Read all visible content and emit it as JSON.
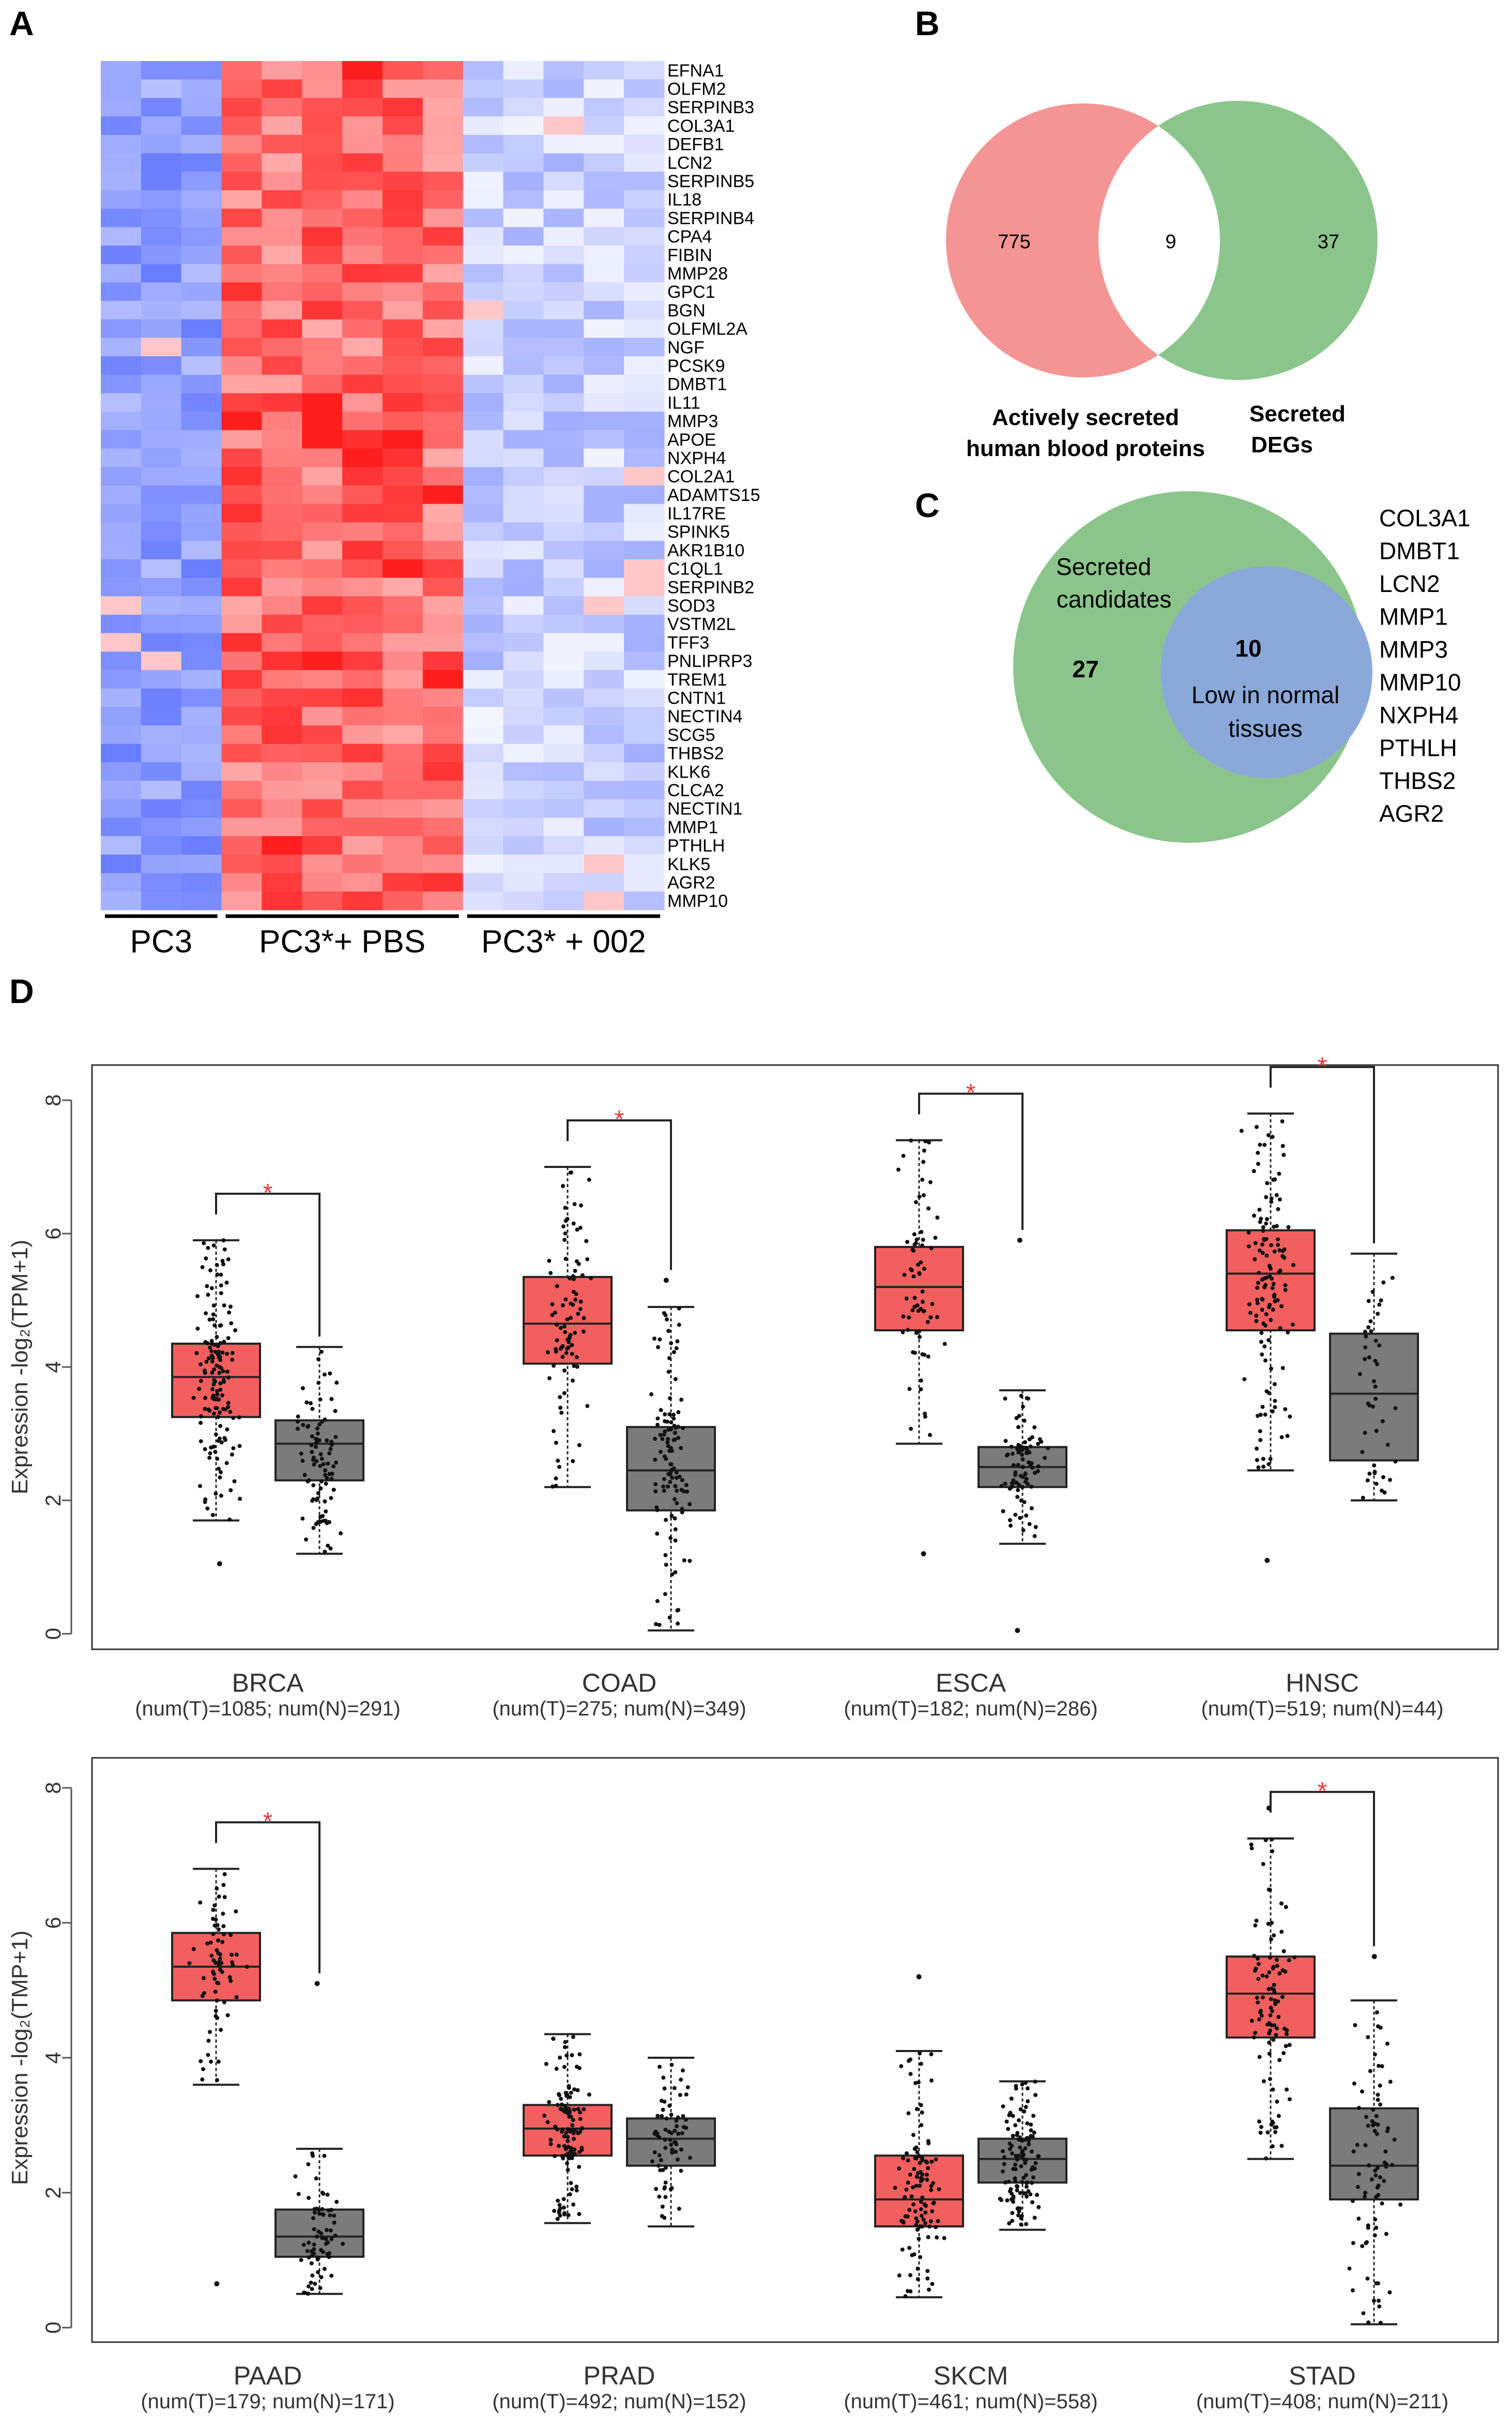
{
  "panels": {
    "A": "A",
    "B": "B",
    "C": "C",
    "D": "D"
  },
  "colors": {
    "tumor": "#f25f5f",
    "normal": "#7b7b7b",
    "vennRed": "#f49494",
    "vennGreen": "#8cc58c",
    "vennBlue": "#8aa9d9",
    "sig": "#e8383d"
  },
  "chart_data": [
    {
      "type": "heatmap",
      "panel": "A",
      "groups": [
        "PC3",
        "PC3*+ PBS",
        "PC3* + 002"
      ],
      "columns_per_group": [
        3,
        6,
        5
      ],
      "genes": [
        "EFNA1",
        "OLFM2",
        "SERPINB3",
        "COL3A1",
        "DEFB1",
        "LCN2",
        "SERPINB5",
        "IL18",
        "SERPINB4",
        "CPA4",
        "FIBIN",
        "MMP28",
        "GPC1",
        "BGN",
        "OLFML2A",
        "NGF",
        "PCSK9",
        "DMBT1",
        "IL11",
        "MMP3",
        "APOE",
        "NXPH4",
        "COL2A1",
        "ADAMTS15",
        "IL17RE",
        "SPINK5",
        "AKR1B10",
        "C1QL1",
        "SERPINB2",
        "SOD3",
        "VSTM2L",
        "TFF3",
        "PNLIPRP3",
        "TREM1",
        "CNTN1",
        "NECTIN4",
        "SCG5",
        "THBS2",
        "KLK6",
        "CLCA2",
        "NECTIN1",
        "MMP1",
        "PTHLH",
        "KLK5",
        "AGR2",
        "MMP10"
      ],
      "level_by_group": [
        -0.75,
        0.65,
        -0.35
      ]
    },
    {
      "type": "venn",
      "panel": "B",
      "sets": [
        {
          "label_line1": "Actively secreted",
          "label_line2": "human blood proteins",
          "only": 775
        },
        {
          "label_line1": "Secreted",
          "label_line2": "DEGs",
          "only": 37
        }
      ],
      "intersection": 9
    },
    {
      "type": "venn",
      "panel": "C",
      "outer": {
        "label_line1": "Secreted",
        "label_line2": "candidates",
        "only": 27
      },
      "inner": {
        "label_line1": "Low in normal",
        "label_line2": "tissues",
        "count": 10
      },
      "gene_list": [
        "COL3A1",
        "DMBT1",
        "LCN2",
        "MMP1",
        "MMP3",
        "MMP10",
        "NXPH4",
        "PTHLH",
        "THBS2",
        "AGR2"
      ]
    },
    {
      "type": "box",
      "panel": "D-top",
      "ylabel": "Expression -log₂(TPM+1)",
      "ylim": [
        0,
        8.5
      ],
      "yticks": [
        0,
        2,
        4,
        6,
        8
      ],
      "significance_marker": "*",
      "groups": [
        {
          "name": "BRCA",
          "counts": "(num(T)=1085; num(N)=291)",
          "sig": true,
          "tumor": {
            "min": 1.7,
            "q1": 3.25,
            "median": 3.85,
            "q3": 4.35,
            "max": 5.9,
            "low_out": 1.05,
            "n_pts": 150
          },
          "normal": {
            "min": 1.2,
            "q1": 2.3,
            "median": 2.85,
            "q3": 3.2,
            "max": 4.3,
            "n_pts": 90
          }
        },
        {
          "name": "COAD",
          "counts": "(num(T)=275; num(N)=349)",
          "sig": true,
          "tumor": {
            "min": 2.2,
            "q1": 4.05,
            "median": 4.65,
            "q3": 5.35,
            "max": 7.0,
            "n_pts": 90
          },
          "normal": {
            "min": 0.05,
            "q1": 1.85,
            "median": 2.45,
            "q3": 3.1,
            "max": 4.9,
            "high_out": 5.3,
            "n_pts": 110
          }
        },
        {
          "name": "ESCA",
          "counts": "(num(T)=182; num(N)=286)",
          "sig": true,
          "tumor": {
            "min": 2.85,
            "q1": 4.55,
            "median": 5.2,
            "q3": 5.8,
            "max": 7.4,
            "low_out": 1.2,
            "n_pts": 70
          },
          "normal": {
            "min": 1.35,
            "q1": 2.2,
            "median": 2.5,
            "q3": 2.8,
            "max": 3.65,
            "high_out": 5.9,
            "low_out": 0.05,
            "n_pts": 90
          }
        },
        {
          "name": "HNSC",
          "counts": "(num(T)=519; num(N)=44)",
          "sig": true,
          "tumor": {
            "min": 2.45,
            "q1": 4.55,
            "median": 5.4,
            "q3": 6.05,
            "max": 7.8,
            "low_out": 1.1,
            "n_pts": 130
          },
          "normal": {
            "min": 2.0,
            "q1": 2.6,
            "median": 3.6,
            "q3": 4.5,
            "max": 5.7,
            "n_pts": 44
          }
        }
      ]
    },
    {
      "type": "box",
      "panel": "D-bottom",
      "ylabel": "Expression -log₂(TMP+1)",
      "ylim": [
        0,
        8.5
      ],
      "yticks": [
        0,
        2,
        4,
        6,
        8
      ],
      "significance_marker": "*",
      "groups": [
        {
          "name": "PAAD",
          "counts": "(num(T)=179; num(N)=171)",
          "sig": true,
          "tumor": {
            "min": 3.6,
            "q1": 4.85,
            "median": 5.35,
            "q3": 5.85,
            "max": 6.8,
            "low_out": 0.65,
            "n_pts": 70
          },
          "normal": {
            "min": 0.5,
            "q1": 1.05,
            "median": 1.35,
            "q3": 1.75,
            "max": 2.65,
            "high_out": 5.1,
            "n_pts": 70
          }
        },
        {
          "name": "PRAD",
          "counts": "(num(T)=492; num(N)=152)",
          "sig": false,
          "tumor": {
            "min": 1.55,
            "q1": 2.55,
            "median": 2.95,
            "q3": 3.3,
            "max": 4.35,
            "n_pts": 120
          },
          "normal": {
            "min": 1.5,
            "q1": 2.4,
            "median": 2.8,
            "q3": 3.1,
            "max": 4.0,
            "n_pts": 70
          }
        },
        {
          "name": "SKCM",
          "counts": "(num(T)=461; num(N)=558)",
          "sig": false,
          "tumor": {
            "min": 0.45,
            "q1": 1.5,
            "median": 1.9,
            "q3": 2.55,
            "max": 4.1,
            "high_out": 5.2,
            "n_pts": 110
          },
          "normal": {
            "min": 1.45,
            "q1": 2.15,
            "median": 2.5,
            "q3": 2.8,
            "max": 3.65,
            "n_pts": 120
          }
        },
        {
          "name": "STAD",
          "counts": "(num(T)=408; num(N)=211)",
          "sig": true,
          "tumor": {
            "min": 2.5,
            "q1": 4.3,
            "median": 4.95,
            "q3": 5.5,
            "max": 7.25,
            "high_out": 7.7,
            "n_pts": 100
          },
          "normal": {
            "min": 0.05,
            "q1": 1.9,
            "median": 2.4,
            "q3": 3.25,
            "max": 4.85,
            "high_out": 5.5,
            "n_pts": 80
          }
        }
      ]
    }
  ]
}
